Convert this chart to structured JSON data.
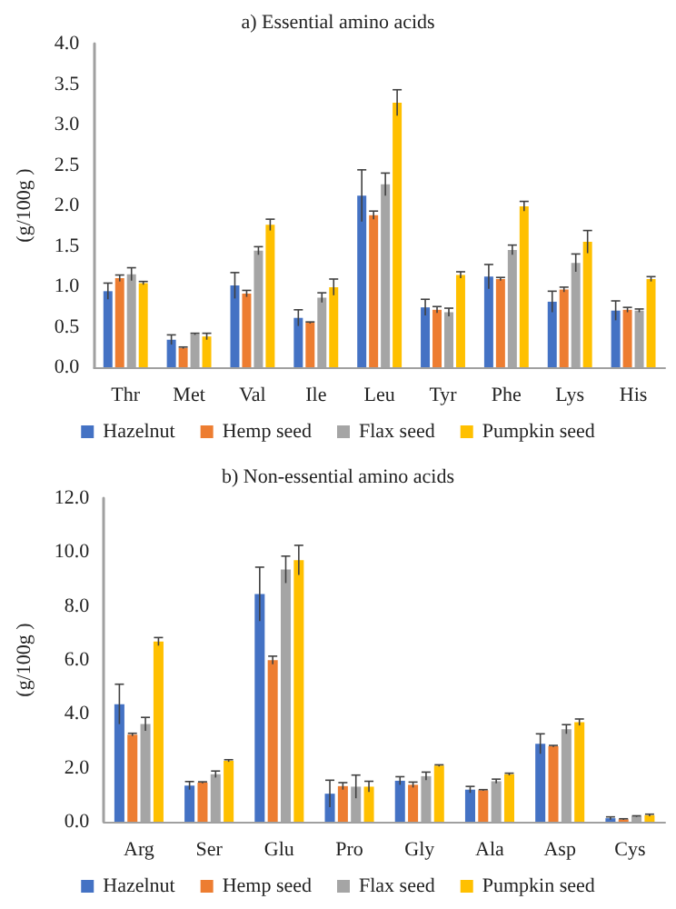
{
  "chart_data": [
    {
      "type": "bar",
      "title": "a) Essential amino acids",
      "ylabel": "(g/100g )",
      "categories": [
        "Thr",
        "Met",
        "Val",
        "Ile",
        "Leu",
        "Tyr",
        "Phe",
        "Lys",
        "His"
      ],
      "series": [
        {
          "name": "Hazelnut",
          "color": "#4472c4",
          "values": [
            0.94,
            0.34,
            1.01,
            0.61,
            2.12,
            0.74,
            1.12,
            0.81,
            0.7
          ],
          "errors": [
            0.1,
            0.06,
            0.16,
            0.1,
            0.32,
            0.1,
            0.15,
            0.13,
            0.12
          ]
        },
        {
          "name": "Hemp seed",
          "color": "#ed7d31",
          "values": [
            1.1,
            0.24,
            0.91,
            0.55,
            1.88,
            0.71,
            1.09,
            0.96,
            0.71
          ],
          "errors": [
            0.04,
            0.01,
            0.04,
            0.01,
            0.05,
            0.04,
            0.02,
            0.03,
            0.03
          ]
        },
        {
          "name": "Flax seed",
          "color": "#a5a5a5",
          "values": [
            1.15,
            0.41,
            1.44,
            0.86,
            2.26,
            0.68,
            1.45,
            1.29,
            0.7
          ],
          "errors": [
            0.08,
            0.01,
            0.05,
            0.06,
            0.14,
            0.05,
            0.06,
            0.11,
            0.02
          ]
        },
        {
          "name": "Pumpkin seed",
          "color": "#ffc000",
          "values": [
            1.04,
            0.38,
            1.76,
            0.99,
            3.27,
            1.14,
            1.99,
            1.55,
            1.09
          ],
          "errors": [
            0.02,
            0.04,
            0.07,
            0.1,
            0.16,
            0.04,
            0.06,
            0.14,
            0.03
          ]
        }
      ],
      "ylim": [
        0,
        4
      ],
      "yticks": [
        {
          "value": 0,
          "label": "0.0"
        },
        {
          "value": 0.5,
          "label": "0.5"
        },
        {
          "value": 1,
          "label": "1.0"
        },
        {
          "value": 1.5,
          "label": "1.5"
        },
        {
          "value": 2,
          "label": "2.0"
        },
        {
          "value": 2.5,
          "label": "2.5"
        },
        {
          "value": 3,
          "label": "3.0"
        },
        {
          "value": 3.5,
          "label": "3.5"
        },
        {
          "value": 4,
          "label": "4.0"
        }
      ],
      "grid": false,
      "legend": "bottom"
    },
    {
      "type": "bar",
      "title": "b) Non-essential amino acids",
      "ylabel": "(g/100g )",
      "categories": [
        "Arg",
        "Ser",
        "Glu",
        "Pro",
        "Gly",
        "Ala",
        "Asp",
        "Cys"
      ],
      "series": [
        {
          "name": "Hazelnut",
          "color": "#4472c4",
          "values": [
            4.36,
            1.34,
            8.44,
            1.04,
            1.52,
            1.19,
            2.89,
            0.13
          ],
          "errors": [
            0.74,
            0.15,
            1.0,
            0.5,
            0.15,
            0.12,
            0.37,
            0.05
          ]
        },
        {
          "name": "Hemp seed",
          "color": "#ed7d31",
          "values": [
            3.23,
            1.45,
            5.99,
            1.32,
            1.37,
            1.17,
            2.8,
            0.09
          ],
          "errors": [
            0.05,
            0.03,
            0.15,
            0.13,
            0.1,
            0.02,
            0.03,
            0.02
          ]
        },
        {
          "name": "Flax seed",
          "color": "#a5a5a5",
          "values": [
            3.62,
            1.76,
            9.35,
            1.3,
            1.69,
            1.5,
            3.43,
            0.2
          ],
          "errors": [
            0.25,
            0.12,
            0.5,
            0.43,
            0.15,
            0.08,
            0.17,
            0.02
          ]
        },
        {
          "name": "Pumpkin seed",
          "color": "#ffc000",
          "values": [
            6.68,
            2.26,
            9.7,
            1.3,
            2.08,
            1.76,
            3.69,
            0.24
          ],
          "errors": [
            0.15,
            0.04,
            0.55,
            0.2,
            0.03,
            0.04,
            0.12,
            0.04
          ]
        }
      ],
      "ylim": [
        0,
        12
      ],
      "yticks": [
        {
          "value": 0,
          "label": "0.0"
        },
        {
          "value": 2,
          "label": "2.0"
        },
        {
          "value": 4,
          "label": "4.0"
        },
        {
          "value": 6,
          "label": "6.0"
        },
        {
          "value": 8,
          "label": "8.0"
        },
        {
          "value": 10,
          "label": "10.0"
        },
        {
          "value": 12,
          "label": "12.0"
        }
      ],
      "grid": false,
      "legend": "bottom"
    }
  ]
}
